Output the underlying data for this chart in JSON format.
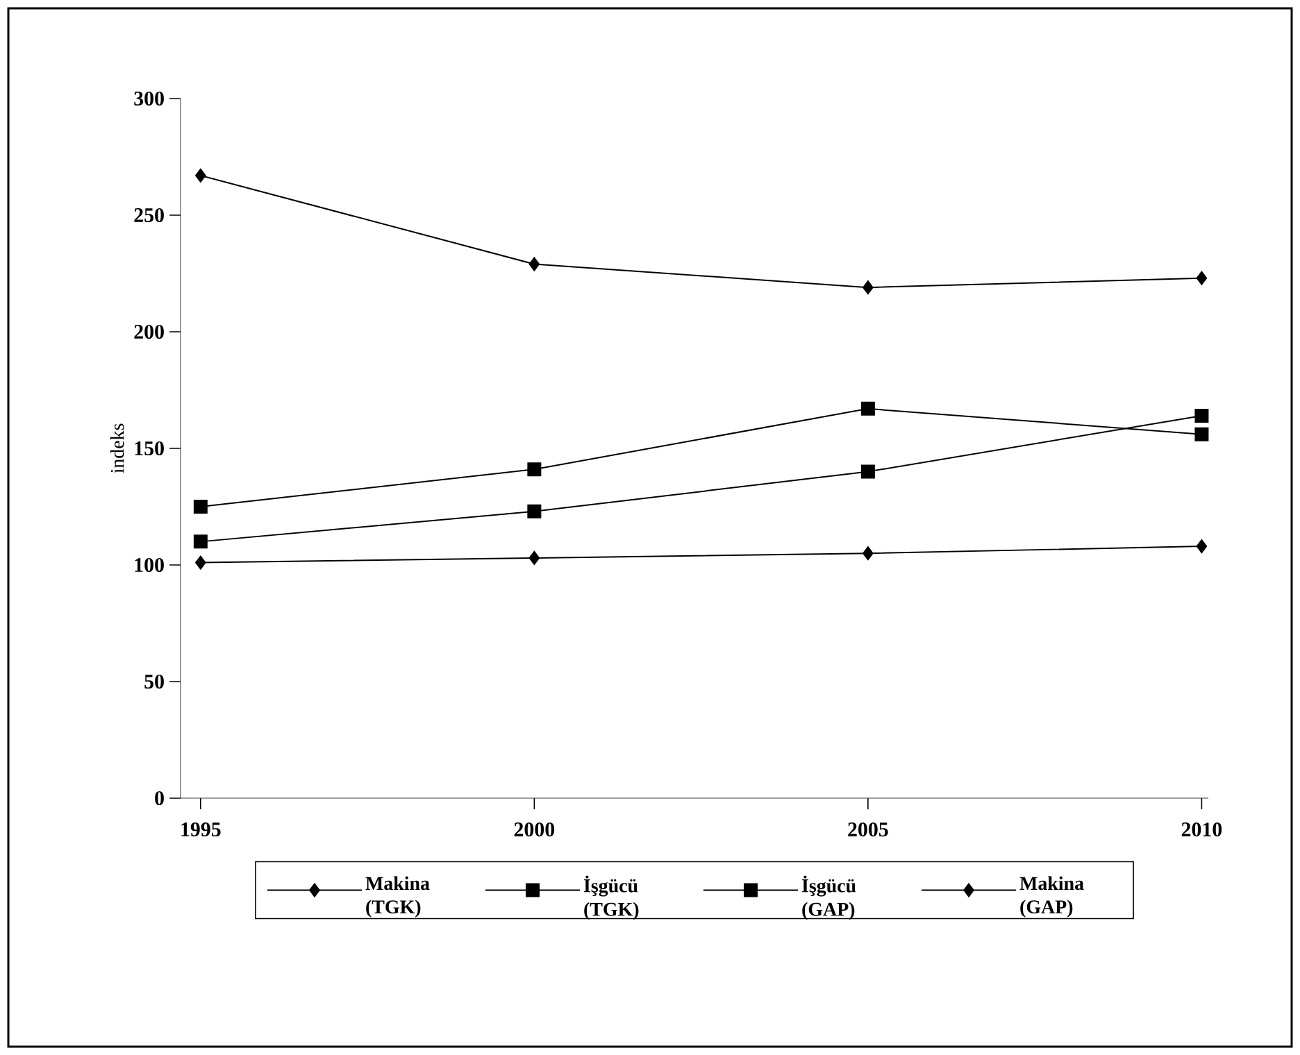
{
  "chart_data": {
    "type": "line",
    "ylabel": "indeks",
    "x": [
      1995,
      2000,
      2005,
      2010
    ],
    "xlim": [
      1994.7,
      2010.1
    ],
    "xticks": [
      1995,
      2000,
      2005,
      2010
    ],
    "ylim": [
      0,
      300
    ],
    "yticks": [
      0,
      50,
      100,
      150,
      200,
      250,
      300
    ],
    "legend": "bottom",
    "line_style": "solid",
    "series": [
      {
        "name": "Makina (TGK)",
        "color": "#000000",
        "marker": "diamond",
        "values": [
          101,
          103,
          105,
          108
        ]
      },
      {
        "name": "İşgücü (TGK)",
        "color": "#000000",
        "marker": "square",
        "values": [
          110,
          123,
          140,
          164
        ]
      },
      {
        "name": "İşgücü (GAP)",
        "color": "#000000",
        "marker": "square",
        "values": [
          125,
          141,
          167,
          156
        ]
      },
      {
        "name": "Makina (GAP)",
        "color": "#000000",
        "marker": "diamond",
        "values": [
          267,
          229,
          219,
          223
        ]
      }
    ]
  }
}
